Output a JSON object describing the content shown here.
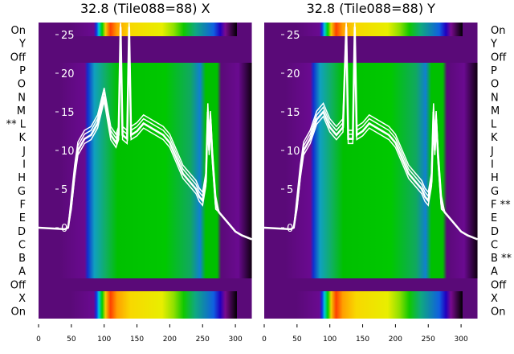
{
  "chart_data": [
    {
      "type": "heatmap",
      "title": "32.8 (Tile088=88) X",
      "row_labels": [
        "On",
        "Y",
        "Off",
        "P",
        "O",
        "N",
        "M",
        "** L",
        "K",
        "J",
        "I",
        "H",
        "G",
        "F",
        "E",
        "D",
        "C",
        "B",
        "A",
        "Off",
        "X",
        "On"
      ],
      "x_ticks": [
        "0",
        "50",
        "100",
        "150",
        "200",
        "250",
        "300"
      ],
      "xlim": [
        0,
        325
      ],
      "y_ticks": [
        "0",
        "5",
        "10",
        "15",
        "20",
        "25"
      ],
      "ylim": [
        -12,
        26
      ],
      "trace_x": [
        0,
        40,
        45,
        50,
        55,
        60,
        70,
        80,
        90,
        100,
        110,
        118,
        122,
        125,
        128,
        135,
        138,
        141,
        150,
        160,
        170,
        180,
        190,
        200,
        210,
        220,
        230,
        240,
        245,
        250,
        255,
        258,
        260,
        262,
        265,
        270,
        275,
        280,
        290,
        300,
        310,
        325
      ],
      "trace_y": [
        0,
        -0.2,
        0,
        3,
        7,
        10,
        11.5,
        12,
        13.5,
        17,
        12,
        11,
        12,
        26,
        12,
        11.5,
        26,
        12,
        12.5,
        13.5,
        13,
        12.5,
        12,
        11,
        9,
        7,
        6,
        5,
        4,
        3.5,
        6,
        15,
        10,
        14,
        9,
        3,
        2,
        1.5,
        0.5,
        -0.5,
        -1,
        -1.5
      ]
    },
    {
      "type": "heatmap",
      "title": "32.8 (Tile088=88) Y",
      "row_labels": [
        "On",
        "Y",
        "Off",
        "P",
        "O",
        "N",
        "M",
        "L",
        "K",
        "J",
        "I",
        "H",
        "G",
        "F **",
        "E",
        "D",
        "C",
        "B **",
        "A",
        "Off",
        "X",
        "On"
      ],
      "x_ticks": [
        "0",
        "50",
        "100",
        "150",
        "200",
        "250",
        "300"
      ],
      "xlim": [
        0,
        325
      ],
      "y_ticks": [
        "0",
        "5",
        "10",
        "15",
        "20",
        "25"
      ],
      "ylim": [
        -12,
        26
      ],
      "trace_x": [
        0,
        40,
        45,
        50,
        55,
        60,
        70,
        80,
        90,
        100,
        110,
        120,
        125,
        128,
        135,
        138,
        141,
        150,
        160,
        170,
        180,
        190,
        200,
        210,
        220,
        230,
        240,
        245,
        250,
        255,
        258,
        260,
        262,
        265,
        270,
        275,
        280,
        290,
        300,
        310,
        325
      ],
      "trace_y": [
        0,
        -0.2,
        0,
        3,
        7,
        10,
        11.5,
        14,
        15,
        13,
        12,
        13,
        26,
        11.5,
        11.5,
        26,
        12,
        12.5,
        13.5,
        13,
        12.5,
        12,
        11,
        9,
        7,
        6,
        5,
        4,
        3.5,
        6,
        15,
        10,
        14,
        9,
        3,
        2,
        1.5,
        0.5,
        -0.5,
        -1,
        -1.5
      ]
    }
  ],
  "colors": {
    "trace": "#ffffff",
    "background": "#5a0a78"
  }
}
